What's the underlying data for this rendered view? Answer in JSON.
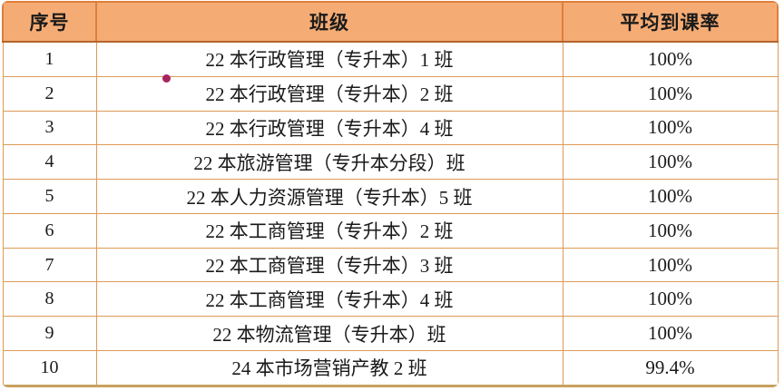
{
  "chart_data": {
    "type": "table",
    "title": "",
    "columns": [
      "序号",
      "班级",
      "平均到课率"
    ],
    "rows": [
      [
        "1",
        "22 本行政管理（专升本）1 班",
        "100%"
      ],
      [
        "2",
        "22 本行政管理（专升本）2 班",
        "100%"
      ],
      [
        "3",
        "22 本行政管理（专升本）4 班",
        "100%"
      ],
      [
        "4",
        "22 本旅游管理（专升本分段）班",
        "100%"
      ],
      [
        "5",
        "22 本人力资源管理（专升本）5 班",
        "100%"
      ],
      [
        "6",
        "22 本工商管理（专升本）2 班",
        "100%"
      ],
      [
        "7",
        "22 本工商管理（专升本）3 班",
        "100%"
      ],
      [
        "8",
        "22 本工商管理（专升本）4 班",
        "100%"
      ],
      [
        "9",
        "22 本物流管理（专升本）班",
        "100%"
      ],
      [
        "10",
        "24 本市场营销产教 2 班",
        "99.4%"
      ]
    ],
    "legend": null,
    "grid": true
  },
  "table": {
    "header": {
      "index": "序号",
      "class_name": "班级",
      "rate": "平均到课率"
    },
    "rows": [
      {
        "index": "1",
        "class_name": "22 本行政管理（专升本）1 班",
        "rate": "100%"
      },
      {
        "index": "2",
        "class_name": "22 本行政管理（专升本）2 班",
        "rate": "100%"
      },
      {
        "index": "3",
        "class_name": "22 本行政管理（专升本）4 班",
        "rate": "100%"
      },
      {
        "index": "4",
        "class_name": "22 本旅游管理（专升本分段）班",
        "rate": "100%"
      },
      {
        "index": "5",
        "class_name": "22 本人力资源管理（专升本）5 班",
        "rate": "100%"
      },
      {
        "index": "6",
        "class_name": "22 本工商管理（专升本）2 班",
        "rate": "100%"
      },
      {
        "index": "7",
        "class_name": "22 本工商管理（专升本）3 班",
        "rate": "100%"
      },
      {
        "index": "8",
        "class_name": "22 本工商管理（专升本）4 班",
        "rate": "100%"
      },
      {
        "index": "9",
        "class_name": "22 本物流管理（专升本）班",
        "rate": "100%"
      },
      {
        "index": "10",
        "class_name": "24 本市场营销产教 2 班",
        "rate": "99.4%"
      }
    ]
  },
  "annotation": {
    "pointer_dot": "magenta-dot"
  },
  "colors": {
    "header_bg": "#F5AC74",
    "header_divider": "#DD7E3C",
    "header_bottom": "#B4632A",
    "body_border": "#DD9A55",
    "outer_bottom": "#C9A05E",
    "text": "#1A1A1A",
    "dot": "#A9245F"
  }
}
